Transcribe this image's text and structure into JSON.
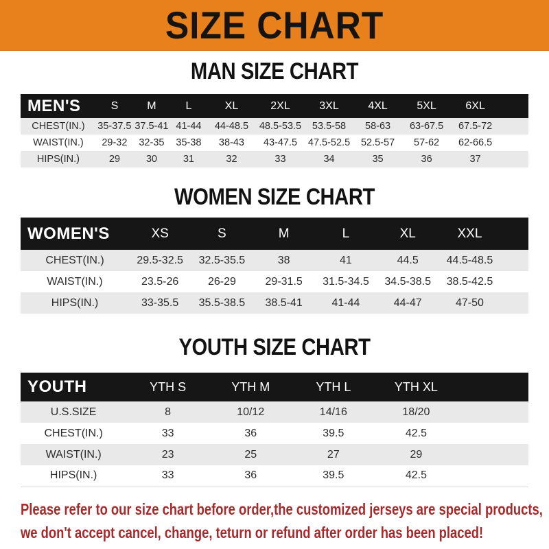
{
  "banner": {
    "title": "SIZE CHART"
  },
  "colors": {
    "banner_orange": "#E8801B",
    "header_bar_black": "#161616",
    "row_stripe_gray": "#E9E9E9",
    "disclaimer_red": "#A6292B"
  },
  "sections": [
    {
      "heading": "MAN SIZE CHART",
      "table": {
        "label": "MEN'S",
        "columns": [
          "S",
          "M",
          "L",
          "XL",
          "2XL",
          "3XL",
          "4XL",
          "5XL",
          "6XL"
        ],
        "rows": [
          {
            "label": "CHEST(IN.)",
            "values": [
              "35-37.5",
              "37.5-41",
              "41-44",
              "44-48.5",
              "48.5-53.5",
              "53.5-58",
              "58-63",
              "63-67.5",
              "67.5-72"
            ]
          },
          {
            "label": "WAIST(IN.)",
            "values": [
              "29-32",
              "32-35",
              "35-38",
              "38-43",
              "43-47.5",
              "47.5-52.5",
              "52.5-57",
              "57-62",
              "62-66.5"
            ]
          },
          {
            "label": "HIPS(IN.)",
            "values": [
              "29",
              "30",
              "31",
              "32",
              "33",
              "34",
              "35",
              "36",
              "37"
            ]
          }
        ]
      }
    },
    {
      "heading": "WOMEN SIZE CHART",
      "table": {
        "label": "WOMEN'S",
        "columns": [
          "XS",
          "S",
          "M",
          "L",
          "XL",
          "XXL"
        ],
        "rows": [
          {
            "label": "CHEST(IN.)",
            "values": [
              "29.5-32.5",
              "32.5-35.5",
              "38",
              "41",
              "44.5",
              "44.5-48.5"
            ]
          },
          {
            "label": "WAIST(IN.)",
            "values": [
              "23.5-26",
              "26-29",
              "29-31.5",
              "31.5-34.5",
              "34.5-38.5",
              "38.5-42.5"
            ]
          },
          {
            "label": "HIPS(IN.)",
            "values": [
              "33-35.5",
              "35.5-38.5",
              "38.5-41",
              "41-44",
              "44-47",
              "47-50"
            ]
          }
        ]
      }
    },
    {
      "heading": "YOUTH SIZE CHART",
      "table": {
        "label": "YOUTH",
        "columns": [
          "YTH S",
          "YTH M",
          "YTH L",
          "YTH XL"
        ],
        "rows": [
          {
            "label": "U.S.SIZE",
            "values": [
              "8",
              "10/12",
              "14/16",
              "18/20"
            ]
          },
          {
            "label": "CHEST(IN.)",
            "values": [
              "33",
              "36",
              "39.5",
              "42.5"
            ]
          },
          {
            "label": "WAIST(IN.)",
            "values": [
              "23",
              "25",
              "27",
              "29"
            ]
          },
          {
            "label": "HIPS(IN.)",
            "values": [
              "33",
              "36",
              "39.5",
              "42.5"
            ]
          }
        ]
      }
    }
  ],
  "disclaimer": {
    "line1": "Please refer to our size chart before order,the customized jerseys are special products,",
    "line2": "we don't accept cancel, change, teturn or refund after order has been placed!"
  }
}
